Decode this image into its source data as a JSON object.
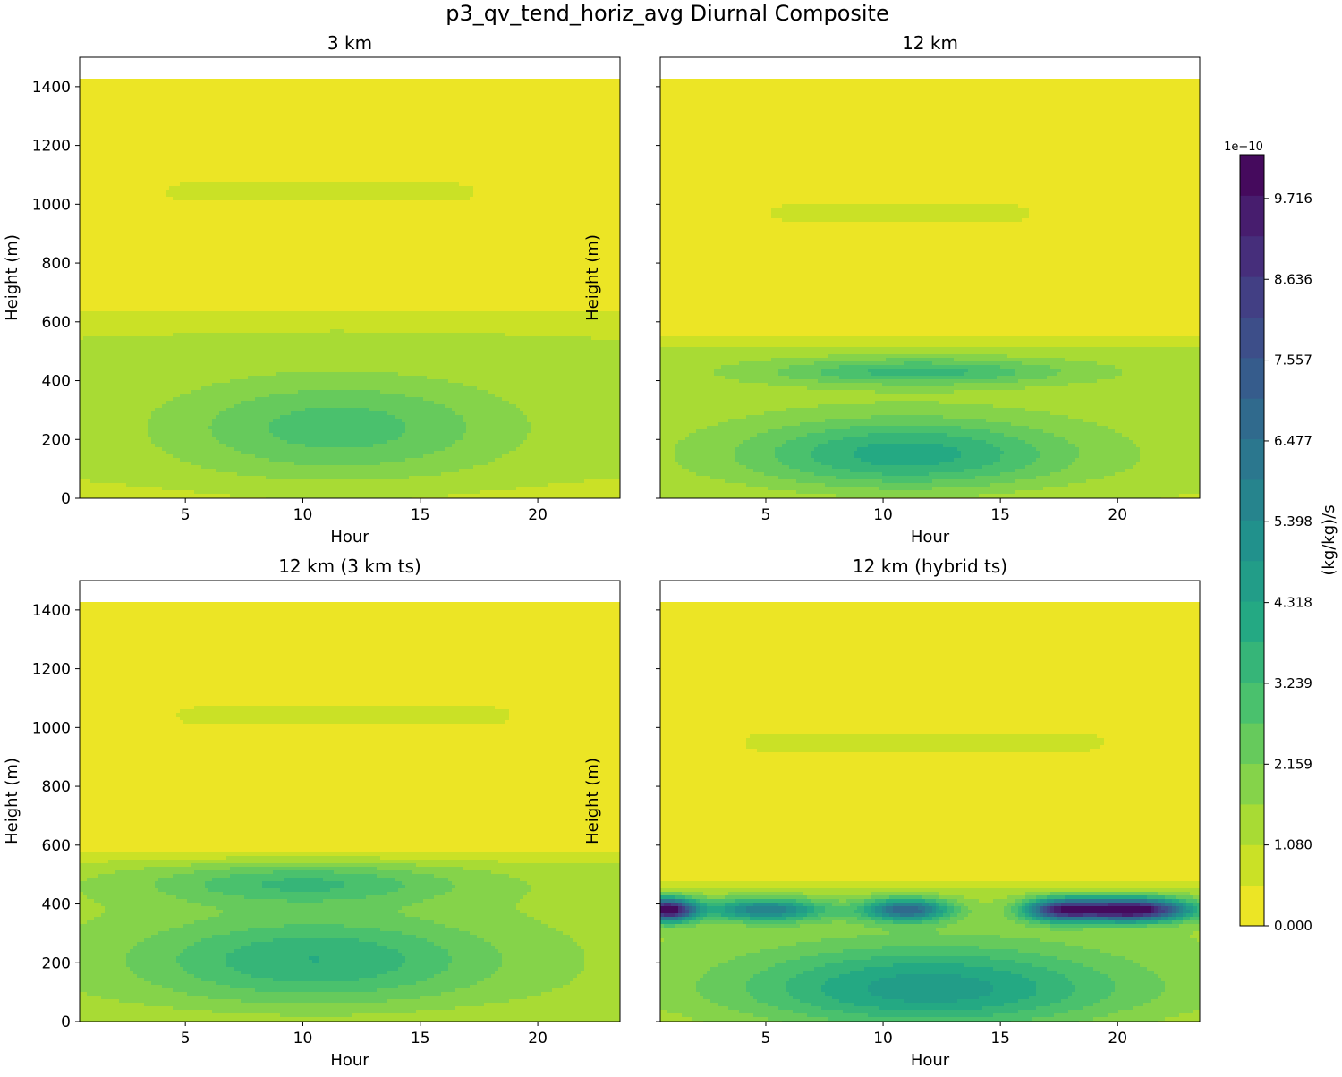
{
  "chart_data": {
    "type": "heatmap",
    "title": "p3_qv_tend_horiz_avg Diurnal Composite",
    "x": [
      0.5,
      1.5,
      2.5,
      3.5,
      4.5,
      5.5,
      6.5,
      7.5,
      8.5,
      9.5,
      10.5,
      11.5,
      12.5,
      13.5,
      14.5,
      15.5,
      16.5,
      17.5,
      18.5,
      19.5,
      20.5,
      21.5,
      22.5,
      23.5
    ],
    "heights": [
      0,
      100,
      200,
      300,
      350,
      400,
      450,
      500,
      550,
      600,
      700,
      800,
      900,
      1000,
      1100,
      1200,
      1300,
      1430
    ],
    "xlim": [
      0.5,
      23.5
    ],
    "ylim": [
      0,
      1500
    ],
    "xticks": [
      5,
      10,
      15,
      20
    ],
    "yticks": [
      0,
      200,
      400,
      600,
      800,
      1000,
      1200,
      1400
    ],
    "panels": [
      {
        "title": "3 km",
        "xlabel": "Hour",
        "ylabel": "Height (m)",
        "features": [
          {
            "region": "boundary layer",
            "hour_range": [
              0.5,
              23.5
            ],
            "height_range": [
              0,
              690
            ],
            "peak": 2.9
          },
          {
            "region": "core",
            "hour_range": [
              4.5,
              17.9
            ],
            "height_range": [
              90,
              380
            ],
            "peak": 2.9
          },
          {
            "region": "aloft band",
            "hour_range": [
              3.5,
              17.5
            ],
            "height_range": [
              960,
              1100
            ],
            "peak": 0.9
          }
        ]
      },
      {
        "title": "12 km",
        "xlabel": "Hour",
        "ylabel": "",
        "features": [
          {
            "region": "boundary layer",
            "hour_range": [
              0.5,
              23.5
            ],
            "height_range": [
              0,
              560
            ],
            "peak": 4.0
          },
          {
            "region": "upper core",
            "hour_range": [
              6.5,
              17.5
            ],
            "height_range": [
              390,
              470
            ],
            "peak": 3.9
          },
          {
            "region": "lower core",
            "hour_range": [
              6,
              16
            ],
            "height_range": [
              90,
              220
            ],
            "peak": 4.1
          },
          {
            "region": "aloft band",
            "hour_range": [
              4.5,
              16.5
            ],
            "height_range": [
              930,
              1010
            ],
            "peak": 0.9
          }
        ]
      },
      {
        "title": "12 km (3 km ts)",
        "xlabel": "Hour",
        "ylabel": "Height (m)",
        "features": [
          {
            "region": "boundary layer",
            "hour_range": [
              0.5,
              23.5
            ],
            "height_range": [
              0,
              600
            ],
            "peak": 3.9
          },
          {
            "region": "upper core",
            "hour_range": [
              8.5,
              12
            ],
            "height_range": [
              480,
              520
            ],
            "peak": 3.9
          },
          {
            "region": "lower core",
            "hour_range": [
              6.5,
              10
            ],
            "height_range": [
              160,
              240
            ],
            "peak": 3.9
          },
          {
            "region": "aloft band",
            "hour_range": [
              4,
              19
            ],
            "height_range": [
              980,
              1110
            ],
            "peak": 0.9
          }
        ]
      },
      {
        "title": "12 km (hybrid ts)",
        "xlabel": "Hour",
        "ylabel": "Height (m)",
        "features": [
          {
            "region": "boundary layer",
            "hour_range": [
              0.5,
              23.5
            ],
            "height_range": [
              0,
              530
            ],
            "peak": 4.8
          },
          {
            "region": "jet maxima",
            "hour_range": [
              0.5,
              23.5
            ],
            "height_range": [
              300,
              440
            ],
            "peak": 10.3
          },
          {
            "region": "aloft band",
            "hour_range": [
              3.5,
              19.5
            ],
            "height_range": [
              890,
              1010
            ],
            "peak": 1.0
          }
        ]
      }
    ],
    "colorbar": {
      "label": "(kg/kg)/s",
      "multiplier": "1e−10",
      "tick_labels": [
        "0.000",
        "1.080",
        "2.159",
        "3.239",
        "4.318",
        "5.398",
        "6.477",
        "7.557",
        "8.636",
        "9.716"
      ],
      "range": [
        0,
        10.3
      ],
      "levels": 19,
      "colormap": "viridis_r"
    }
  }
}
